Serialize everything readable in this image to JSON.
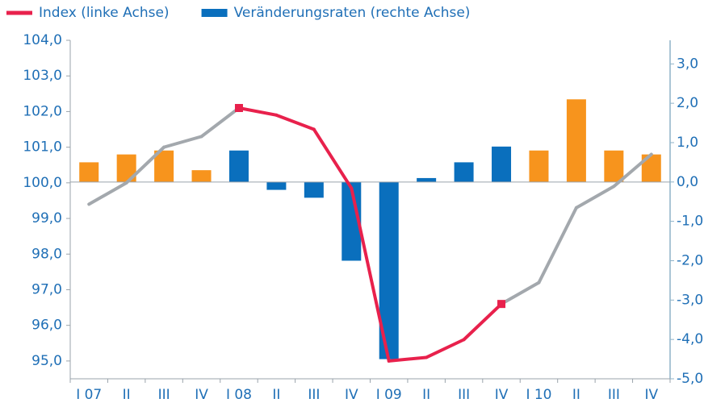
{
  "chart_data": {
    "type": "bar_line",
    "categories": [
      "I 07",
      "II",
      "III",
      "IV",
      "I 08",
      "II",
      "III",
      "IV",
      "I 09",
      "II",
      "III",
      "IV",
      "I 10",
      "II",
      "III",
      "IV"
    ],
    "series": [
      {
        "name": "Index (linke Achse)",
        "type": "line",
        "axis": "y",
        "color": "#e8214c",
        "segment_colors": [
          "#a3a8ad",
          "#a3a8ad",
          "#a3a8ad",
          "#a3a8ad",
          "#e8214c",
          "#e8214c",
          "#e8214c",
          "#e8214c",
          "#e8214c",
          "#e8214c",
          "#e8214c",
          "#a3a8ad",
          "#a3a8ad",
          "#a3a8ad",
          "#a3a8ad",
          "#a3a8ad"
        ],
        "values": [
          99.4,
          100.0,
          101.0,
          101.3,
          102.1,
          101.9,
          101.5,
          99.85,
          95.0,
          95.1,
          95.6,
          96.6,
          97.2,
          99.3,
          99.9,
          100.8
        ]
      },
      {
        "name": "Veränderungsraten (rechte Achse)",
        "type": "bar",
        "axis": "y2",
        "color": "#0a6fbd",
        "colors": [
          "#f7941d",
          "#f7941d",
          "#f7941d",
          "#f7941d",
          "#0a6fbd",
          "#0a6fbd",
          "#0a6fbd",
          "#0a6fbd",
          "#0a6fbd",
          "#0a6fbd",
          "#0a6fbd",
          "#0a6fbd",
          "#f7941d",
          "#f7941d",
          "#f7941d",
          "#f7941d"
        ],
        "values": [
          0.5,
          0.7,
          0.8,
          0.3,
          0.8,
          -0.2,
          -0.4,
          -2.0,
          -4.5,
          0.1,
          0.5,
          0.9,
          0.8,
          2.1,
          0.8,
          0.7
        ]
      }
    ],
    "ylim": [
      94.5,
      104.0
    ],
    "yticks": [
      {
        "value": 95,
        "label": "95,0"
      },
      {
        "value": 96,
        "label": "96,0"
      },
      {
        "value": 97,
        "label": "97,0"
      },
      {
        "value": 98,
        "label": "98,0"
      },
      {
        "value": 99,
        "label": "99,0"
      },
      {
        "value": 100,
        "label": "100,0"
      },
      {
        "value": 101,
        "label": "101,0"
      },
      {
        "value": 102,
        "label": "102,0"
      },
      {
        "value": 103,
        "label": "103,0"
      },
      {
        "value": 104,
        "label": "104,0"
      }
    ],
    "y2lim": [
      -5.0,
      3.6
    ],
    "y2ticks": [
      {
        "value": -5,
        "label": "-5,0"
      },
      {
        "value": -4,
        "label": "-4,0"
      },
      {
        "value": -3,
        "label": "-3,0"
      },
      {
        "value": -2,
        "label": "-2,0"
      },
      {
        "value": -1,
        "label": "-1,0"
      },
      {
        "value": 0,
        "label": "0,0"
      },
      {
        "value": 1,
        "label": "1,0"
      },
      {
        "value": 2,
        "label": "2,0"
      },
      {
        "value": 3,
        "label": "3,0"
      }
    ]
  }
}
